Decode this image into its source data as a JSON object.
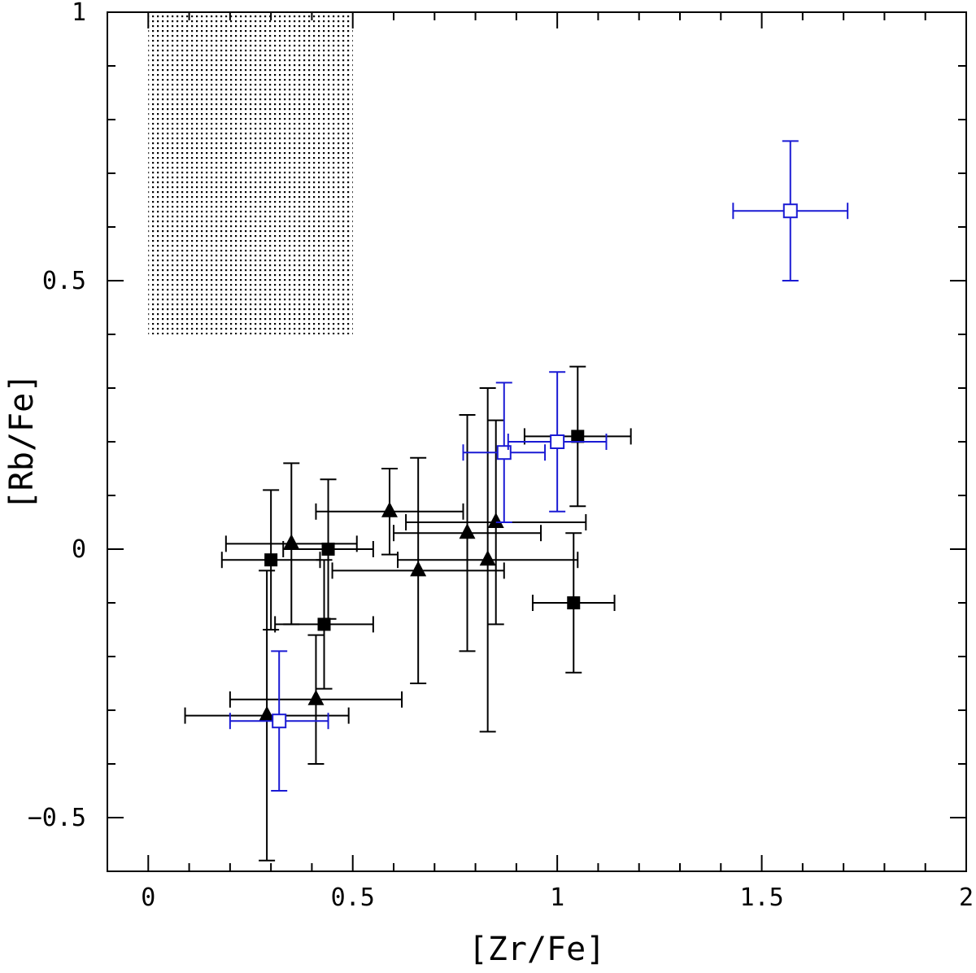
{
  "chart_data": {
    "type": "scatter",
    "title": "",
    "xlabel": "[Zr/Fe]",
    "ylabel": "[Rb/Fe]",
    "xlim": [
      -0.1,
      2.0
    ],
    "ylim": [
      -0.6,
      1.0
    ],
    "xticks": [
      0,
      0.5,
      1,
      1.5,
      2
    ],
    "xtick_labels": [
      "0",
      "0.5",
      "1",
      "1.5",
      "2"
    ],
    "yticks": [
      -0.5,
      0,
      0.5,
      1
    ],
    "ytick_labels": [
      "−0.5",
      "0",
      "0.5",
      "1"
    ],
    "grid": false,
    "shaded_region": {
      "description": "dotted prediction region",
      "x_range": [
        0.0,
        0.5
      ],
      "y_range": [
        0.4,
        1.0
      ],
      "color": "#000000"
    },
    "series": [
      {
        "name": "filled squares",
        "marker": "square-filled",
        "color": "#000000",
        "points": [
          {
            "x": 0.3,
            "y": -0.02,
            "xerr": 0.12,
            "yerr": 0.13
          },
          {
            "x": 0.44,
            "y": 0.0,
            "xerr": 0.11,
            "yerr": 0.13
          },
          {
            "x": 0.43,
            "y": -0.14,
            "xerr": 0.12,
            "yerr": 0.12
          },
          {
            "x": 1.05,
            "y": 0.21,
            "xerr": 0.13,
            "yerr": 0.13
          },
          {
            "x": 1.04,
            "y": -0.1,
            "xerr": 0.1,
            "yerr": 0.13
          }
        ]
      },
      {
        "name": "filled triangles",
        "marker": "triangle-filled",
        "color": "#000000",
        "points": [
          {
            "x": 0.35,
            "y": 0.01,
            "xerr": 0.16,
            "yerr": 0.15
          },
          {
            "x": 0.59,
            "y": 0.07,
            "xerr": 0.18,
            "yerr": 0.08
          },
          {
            "x": 0.66,
            "y": -0.04,
            "xerr": 0.21,
            "yerr": 0.21
          },
          {
            "x": 0.78,
            "y": 0.03,
            "xerr": 0.18,
            "yerr": 0.22
          },
          {
            "x": 0.83,
            "y": -0.02,
            "xerr": 0.22,
            "yerr": 0.32
          },
          {
            "x": 0.85,
            "y": 0.05,
            "xerr": 0.22,
            "yerr": 0.19
          },
          {
            "x": 0.29,
            "y": -0.31,
            "xerr": 0.2,
            "yerr": 0.27
          },
          {
            "x": 0.41,
            "y": -0.28,
            "xerr": 0.21,
            "yerr": 0.12
          }
        ]
      },
      {
        "name": "open squares",
        "marker": "square-open",
        "color": "#1a1ad4",
        "points": [
          {
            "x": 0.32,
            "y": -0.32,
            "xerr": 0.12,
            "yerr": 0.13
          },
          {
            "x": 0.87,
            "y": 0.18,
            "xerr": 0.1,
            "yerr": 0.13
          },
          {
            "x": 1.0,
            "y": 0.2,
            "xerr": 0.12,
            "yerr": 0.13
          },
          {
            "x": 1.57,
            "y": 0.63,
            "xerr": 0.14,
            "yerr": 0.13
          }
        ]
      }
    ]
  }
}
